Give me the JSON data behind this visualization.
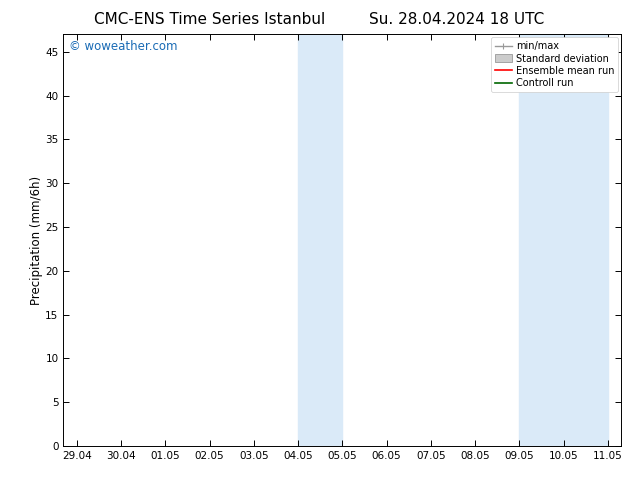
{
  "title_left": "CMC-ENS Time Series Istanbul",
  "title_right": "Su. 28.04.2024 18 UTC",
  "ylabel": "Precipitation (mm/6h)",
  "ylim": [
    0,
    47
  ],
  "yticks": [
    0,
    5,
    10,
    15,
    20,
    25,
    30,
    35,
    40,
    45
  ],
  "watermark": "© woweather.com",
  "watermark_color": "#1a6bb5",
  "background_color": "#ffffff",
  "plot_bg_color": "#ffffff",
  "shaded_bands": [
    {
      "x_start": 5.0,
      "x_end": 5.5,
      "color": "#daeaf8"
    },
    {
      "x_start": 5.5,
      "x_end": 6.0,
      "color": "#daeaf8"
    },
    {
      "x_start": 11.0,
      "x_end": 11.5,
      "color": "#daeaf8"
    },
    {
      "x_start": 11.5,
      "x_end": 12.0,
      "color": "#daeaf8"
    }
  ],
  "xtick_labels": [
    "29.04",
    "30.04",
    "01.05",
    "02.05",
    "03.05",
    "04.05",
    "05.05",
    "06.05",
    "07.05",
    "08.05",
    "09.05",
    "10.05",
    "11.05"
  ],
  "xtick_positions": [
    0,
    1,
    2,
    3,
    4,
    5,
    6,
    7,
    8,
    9,
    10,
    11,
    12
  ],
  "xlim": [
    -0.3,
    12.3
  ],
  "legend_labels": [
    "min/max",
    "Standard deviation",
    "Ensemble mean run",
    "Controll run"
  ],
  "title_fontsize": 11,
  "tick_fontsize": 7.5,
  "label_fontsize": 8.5
}
